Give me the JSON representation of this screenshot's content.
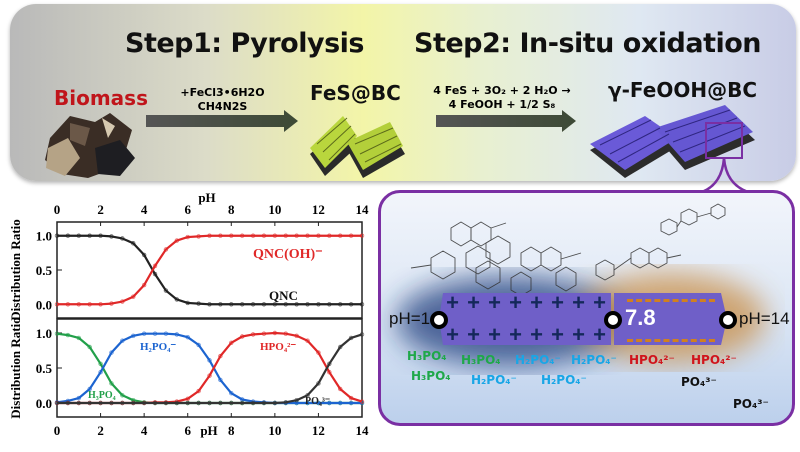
{
  "header": {
    "step1_title": "Step1: Pyrolysis",
    "step2_title": "Step2:  In-situ oxidation",
    "biomass_label": "Biomass",
    "reagents_line1": "+FeCl3•6H2O",
    "reagents_line2": "CH4N2S",
    "fes_label": "FeS@BC",
    "reaction_line1": "4 FeS + 3O₂ + 2 H₂O →",
    "reaction_line2": "4 FeOOH + 1/2 S₈",
    "product_label": "γ-FeOOH@BC",
    "colors": {
      "biomass": "#c0151b",
      "fes_material": "#b5d43a",
      "feooh_material": "#6a5ad8",
      "callout": "#7a2fa3"
    }
  },
  "mechanism": {
    "ph_left": "pH=1",
    "ph_mid": "7.8",
    "ph_right": "pH=14",
    "ions": {
      "h3po4": [
        "H₃PO₄",
        "H₃PO₄",
        "H₃PO₄"
      ],
      "h2po4": [
        "H₂PO₄⁻",
        "H₂PO₄⁻",
        "H₂PO₄⁻",
        "H₂PO₄⁻"
      ],
      "hpo4": [
        "HPO₄²⁻",
        "HPO₄²⁻"
      ],
      "po4": [
        "PO₄³⁻",
        "PO₄³⁻"
      ]
    },
    "positive_sign": "+",
    "colors": {
      "bar": "#6f5fc8",
      "positive_glow": "#1e3a7a",
      "negative_glow": "#c8883a",
      "h3po4": "#1fa84a",
      "h2po4": "#19a6e6",
      "hpo4": "#d0141c",
      "po4": "#111111"
    }
  },
  "chart_data": [
    {
      "type": "line",
      "xlabel": "pH",
      "ylabel": "Distribution Ratio",
      "xlim": [
        0,
        14
      ],
      "ylim": [
        -0.2,
        1.2
      ],
      "xticks": [
        "0",
        "2",
        "4",
        "6",
        "8",
        "10",
        "12",
        "14"
      ],
      "yticks": [
        "0.0",
        "0.5",
        "1.0"
      ],
      "x_axis_position": "top",
      "x": [
        0,
        0.5,
        1,
        1.5,
        2,
        2.5,
        3,
        3.5,
        4,
        4.5,
        5,
        5.5,
        6,
        6.5,
        7,
        7.5,
        8,
        8.5,
        9,
        9.5,
        10,
        10.5,
        11,
        11.5,
        12,
        12.5,
        13,
        13.5,
        14
      ],
      "series": [
        {
          "name": "QNC",
          "color": "#222222",
          "values": [
            1,
            1,
            1,
            1,
            1,
            0.99,
            0.96,
            0.89,
            0.72,
            0.44,
            0.2,
            0.07,
            0.02,
            0.01,
            0,
            0,
            0,
            0,
            0,
            0,
            0,
            0,
            0,
            0,
            0,
            0,
            0,
            0,
            0
          ]
        },
        {
          "name": "QNC(OH)⁻",
          "color": "#e02828",
          "values": [
            0,
            0,
            0,
            0,
            0,
            0.01,
            0.04,
            0.11,
            0.28,
            0.56,
            0.8,
            0.93,
            0.98,
            0.99,
            1,
            1,
            1,
            1,
            1,
            1,
            1,
            1,
            1,
            1,
            1,
            1,
            1,
            1,
            1
          ]
        }
      ]
    },
    {
      "type": "line",
      "xlabel": "pH",
      "ylabel": "Distribution Ratio",
      "xlim": [
        0,
        14
      ],
      "ylim": [
        -0.2,
        1.2
      ],
      "xticks": [
        "0",
        "2",
        "4",
        "6",
        "8",
        "10",
        "12",
        "14"
      ],
      "yticks": [
        "0.0",
        "0.5",
        "1.0"
      ],
      "x_axis_position": "bottom",
      "x": [
        0,
        0.5,
        1,
        1.5,
        2,
        2.5,
        3,
        3.5,
        4,
        4.5,
        5,
        5.5,
        6,
        6.5,
        7,
        7.5,
        8,
        8.5,
        9,
        9.5,
        10,
        10.5,
        11,
        11.5,
        12,
        12.5,
        13,
        13.5,
        14
      ],
      "series": [
        {
          "name": "H₃PO₄",
          "color": "#22a04a",
          "values": [
            0.99,
            0.97,
            0.93,
            0.8,
            0.56,
            0.28,
            0.11,
            0.04,
            0.01,
            0,
            0,
            0,
            0,
            0,
            0,
            0,
            0,
            0,
            0,
            0,
            0,
            0,
            0,
            0,
            0,
            0,
            0,
            0,
            0
          ]
        },
        {
          "name": "H₂PO₄⁻",
          "color": "#1c64d0",
          "values": [
            0.01,
            0.03,
            0.07,
            0.2,
            0.44,
            0.72,
            0.89,
            0.96,
            0.99,
            0.99,
            0.99,
            0.98,
            0.94,
            0.83,
            0.61,
            0.33,
            0.14,
            0.05,
            0.02,
            0.01,
            0,
            0,
            0,
            0,
            0,
            0,
            0,
            0,
            0
          ]
        },
        {
          "name": "HPO₄²⁻",
          "color": "#e02828",
          "values": [
            0,
            0,
            0,
            0,
            0,
            0,
            0,
            0,
            0,
            0.01,
            0.01,
            0.02,
            0.06,
            0.17,
            0.39,
            0.67,
            0.86,
            0.95,
            0.98,
            0.99,
            1,
            0.99,
            0.96,
            0.89,
            0.72,
            0.44,
            0.2,
            0.07,
            0.02
          ]
        },
        {
          "name": "PO₄³⁻",
          "color": "#333333",
          "values": [
            0,
            0,
            0,
            0,
            0,
            0,
            0,
            0,
            0,
            0,
            0,
            0,
            0,
            0,
            0,
            0,
            0,
            0,
            0,
            0,
            0,
            0.01,
            0.04,
            0.11,
            0.28,
            0.56,
            0.8,
            0.93,
            0.98
          ]
        }
      ]
    }
  ]
}
